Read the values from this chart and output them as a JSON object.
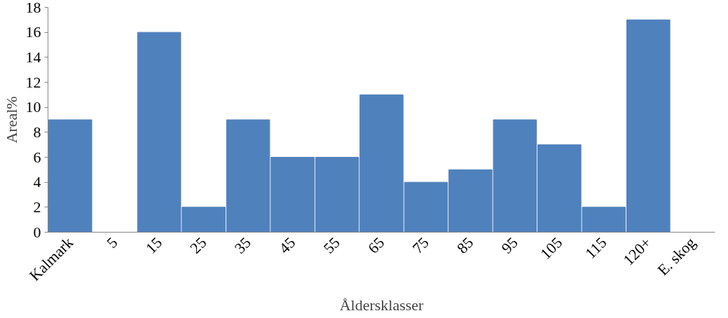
{
  "chart_data": {
    "type": "bar",
    "xlabel": "Åldersklasser",
    "ylabel": "Areal%",
    "categories": [
      "Kalmark",
      "5",
      "15",
      "25",
      "35",
      "45",
      "55",
      "65",
      "75",
      "85",
      "95",
      "105",
      "115",
      "120+",
      "E. skog"
    ],
    "values": [
      9,
      0,
      16,
      2,
      9,
      6,
      6,
      11,
      4,
      5,
      9,
      7,
      2,
      17,
      0
    ],
    "color": "#4f81bd",
    "ylim": [
      0,
      18
    ],
    "yticks": [
      0,
      2,
      4,
      6,
      8,
      10,
      12,
      14,
      16,
      18
    ],
    "grid": false
  }
}
